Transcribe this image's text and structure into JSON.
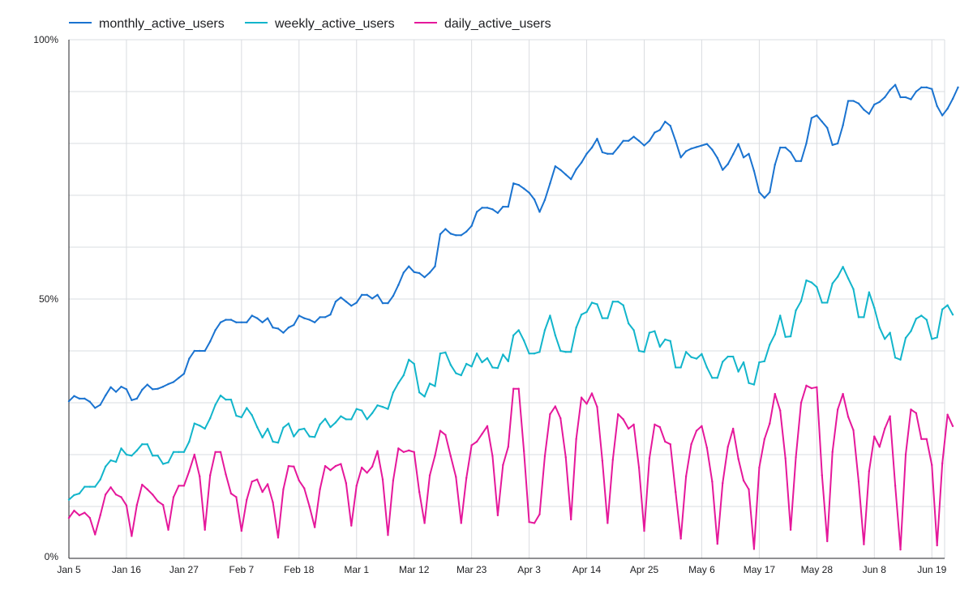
{
  "chart_data": {
    "type": "line",
    "ylim": [
      0,
      100
    ],
    "y_ticks": [
      "0%",
      "50%",
      "100%"
    ],
    "y_tick_values": [
      0,
      50,
      100
    ],
    "x_tick_labels": [
      "Jan 5",
      "Jan 16",
      "Jan 27",
      "Feb 7",
      "Feb 18",
      "Mar 1",
      "Mar 12",
      "Mar 23",
      "Apr 3",
      "Apr 14",
      "Apr 25",
      "May 6",
      "May 17",
      "May 28",
      "Jun 8",
      "Jun 19"
    ],
    "grid": true,
    "legend_position": "top-left",
    "series": [
      {
        "name": "monthly_active_users",
        "color": "#1a73d0",
        "values": [
          30.3,
          31.3,
          30.8,
          30.8,
          30.2,
          29.0,
          29.6,
          31.4,
          33.0,
          32.1,
          33.1,
          32.6,
          30.5,
          30.8,
          32.5,
          33.5,
          32.6,
          32.7,
          33.1,
          33.6,
          34.0,
          34.8,
          35.6,
          38.5,
          40.0,
          40.0,
          40.0,
          41.8,
          44.0,
          45.5,
          46.0,
          46.0,
          45.5,
          45.5,
          45.5,
          46.8,
          46.3,
          45.5,
          46.3,
          44.5,
          44.3,
          43.5,
          44.5,
          45.0,
          46.8,
          46.3,
          46.0,
          45.5,
          46.5,
          46.5,
          47.0,
          49.5,
          50.3,
          49.5,
          48.7,
          49.3,
          50.8,
          50.8,
          50.1,
          50.8,
          49.2,
          49.2,
          50.6,
          52.7,
          55.1,
          56.3,
          55.2,
          55.0,
          54.2,
          55.1,
          56.3,
          62.5,
          63.5,
          62.6,
          62.3,
          62.3,
          63.0,
          64.1,
          66.8,
          67.6,
          67.6,
          67.3,
          66.6,
          67.8,
          67.8,
          72.3,
          72.0,
          71.3,
          70.5,
          69.2,
          66.8,
          69.1,
          72.3,
          75.6,
          74.9,
          74.0,
          73.1,
          75.0,
          76.3,
          78.0,
          79.2,
          80.9,
          78.3,
          78.0,
          78.0,
          79.2,
          80.5,
          80.5,
          81.3,
          80.5,
          79.6,
          80.5,
          82.1,
          82.6,
          84.2,
          83.4,
          80.5,
          77.3,
          78.5,
          79.0,
          79.3,
          79.6,
          79.9,
          78.8,
          77.2,
          74.9,
          76.0,
          77.9,
          79.9,
          77.3,
          78.0,
          74.7,
          70.6,
          69.5,
          70.6,
          75.9,
          79.2,
          79.2,
          78.3,
          76.6,
          76.6,
          80.0,
          84.9,
          85.4,
          84.2,
          83.0,
          79.7,
          80.0,
          83.5,
          88.2,
          88.2,
          87.7,
          86.5,
          85.7,
          87.5,
          88.0,
          88.9,
          90.3,
          91.3,
          88.9,
          88.9,
          88.5,
          90.0,
          90.8,
          90.8,
          90.5,
          87.2,
          85.4,
          86.7,
          88.6,
          90.8
        ]
      },
      {
        "name": "weekly_active_users",
        "color": "#12b5cb",
        "values": [
          11.3,
          12.2,
          12.5,
          13.8,
          13.8,
          13.8,
          15.2,
          17.7,
          18.9,
          18.6,
          21.2,
          20.0,
          19.8,
          20.8,
          22.0,
          22.0,
          19.8,
          19.8,
          18.2,
          18.5,
          20.5,
          20.5,
          20.5,
          22.5,
          26.0,
          25.6,
          25.0,
          27.0,
          29.6,
          31.4,
          30.6,
          30.6,
          27.5,
          27.2,
          29.0,
          27.6,
          25.3,
          23.3,
          25.0,
          22.5,
          22.3,
          25.2,
          26.0,
          23.5,
          24.8,
          25.0,
          23.5,
          23.4,
          25.8,
          26.9,
          25.3,
          26.2,
          27.4,
          26.8,
          26.8,
          28.8,
          28.5,
          26.8,
          28.0,
          29.5,
          29.2,
          28.8,
          32.0,
          33.8,
          35.3,
          38.3,
          37.5,
          32.0,
          31.2,
          33.7,
          33.2,
          39.5,
          39.7,
          37.3,
          35.7,
          35.3,
          37.5,
          37.0,
          39.5,
          37.8,
          38.6,
          36.8,
          36.7,
          39.3,
          38.0,
          43.0,
          44.0,
          42.0,
          39.5,
          39.5,
          39.8,
          44.0,
          46.8,
          43.0,
          40.0,
          39.8,
          39.8,
          44.5,
          47.0,
          47.5,
          49.3,
          49.0,
          46.3,
          46.3,
          49.5,
          49.5,
          48.8,
          45.3,
          44.0,
          40.0,
          39.8,
          43.5,
          43.8,
          40.8,
          42.2,
          41.9,
          36.8,
          36.8,
          39.8,
          38.8,
          38.5,
          39.4,
          36.8,
          34.8,
          34.8,
          37.9,
          38.9,
          38.9,
          36.0,
          37.8,
          33.8,
          33.5,
          37.8,
          38.0,
          41.2,
          43.2,
          46.8,
          42.7,
          42.8,
          47.8,
          49.6,
          53.6,
          53.2,
          52.3,
          49.3,
          49.3,
          53.0,
          54.3,
          56.2,
          54.0,
          51.9,
          46.5,
          46.5,
          51.3,
          48.3,
          44.5,
          42.3,
          43.5,
          38.7,
          38.3,
          42.5,
          43.8,
          46.2,
          46.8,
          46.0,
          42.3,
          42.6,
          48.0,
          48.8,
          47.0
        ]
      },
      {
        "name": "daily_active_users",
        "color": "#e5189b",
        "values": [
          7.8,
          9.2,
          8.3,
          8.8,
          7.8,
          4.6,
          8.3,
          12.3,
          13.7,
          12.3,
          11.8,
          10.2,
          4.3,
          10.3,
          14.2,
          13.3,
          12.3,
          11.0,
          10.3,
          5.5,
          11.8,
          14.0,
          14.0,
          16.8,
          20.0,
          15.8,
          5.5,
          16.0,
          20.5,
          20.5,
          16.2,
          12.5,
          11.8,
          5.3,
          11.3,
          14.8,
          15.2,
          12.8,
          14.3,
          10.8,
          4.0,
          13.3,
          17.8,
          17.7,
          15.0,
          13.5,
          10.0,
          6.0,
          13.3,
          17.8,
          17.0,
          17.8,
          18.2,
          14.5,
          6.3,
          14.0,
          17.5,
          16.5,
          17.7,
          20.7,
          15.2,
          4.5,
          15.0,
          21.2,
          20.5,
          20.8,
          20.5,
          12.8,
          6.8,
          16.0,
          19.8,
          24.6,
          23.8,
          19.7,
          15.7,
          6.8,
          15.5,
          21.8,
          22.5,
          24.0,
          25.5,
          19.7,
          8.3,
          18.0,
          21.5,
          32.7,
          32.7,
          20.7,
          7.0,
          6.8,
          8.5,
          19.7,
          27.8,
          29.3,
          27.0,
          19.5,
          7.5,
          23.0,
          31.0,
          29.8,
          31.8,
          29.2,
          18.8,
          6.8,
          19.0,
          27.8,
          26.8,
          25.0,
          25.8,
          17.5,
          5.3,
          19.3,
          25.8,
          25.3,
          22.5,
          22.0,
          12.8,
          3.8,
          15.8,
          22.0,
          24.6,
          25.5,
          21.3,
          14.8,
          2.8,
          14.5,
          21.5,
          25.0,
          19.2,
          15.0,
          13.3,
          1.8,
          17.5,
          23.0,
          26.0,
          31.7,
          28.5,
          19.3,
          5.5,
          19.5,
          30.0,
          33.3,
          32.8,
          33.0,
          16.0,
          3.3,
          20.5,
          28.7,
          31.7,
          27.3,
          24.7,
          14.8,
          2.7,
          16.8,
          23.5,
          21.5,
          25.0,
          27.4,
          14.0,
          1.7,
          20.0,
          28.7,
          28.0,
          23.0,
          23.0,
          18.0,
          2.5,
          18.3,
          27.7,
          25.5
        ]
      }
    ]
  }
}
